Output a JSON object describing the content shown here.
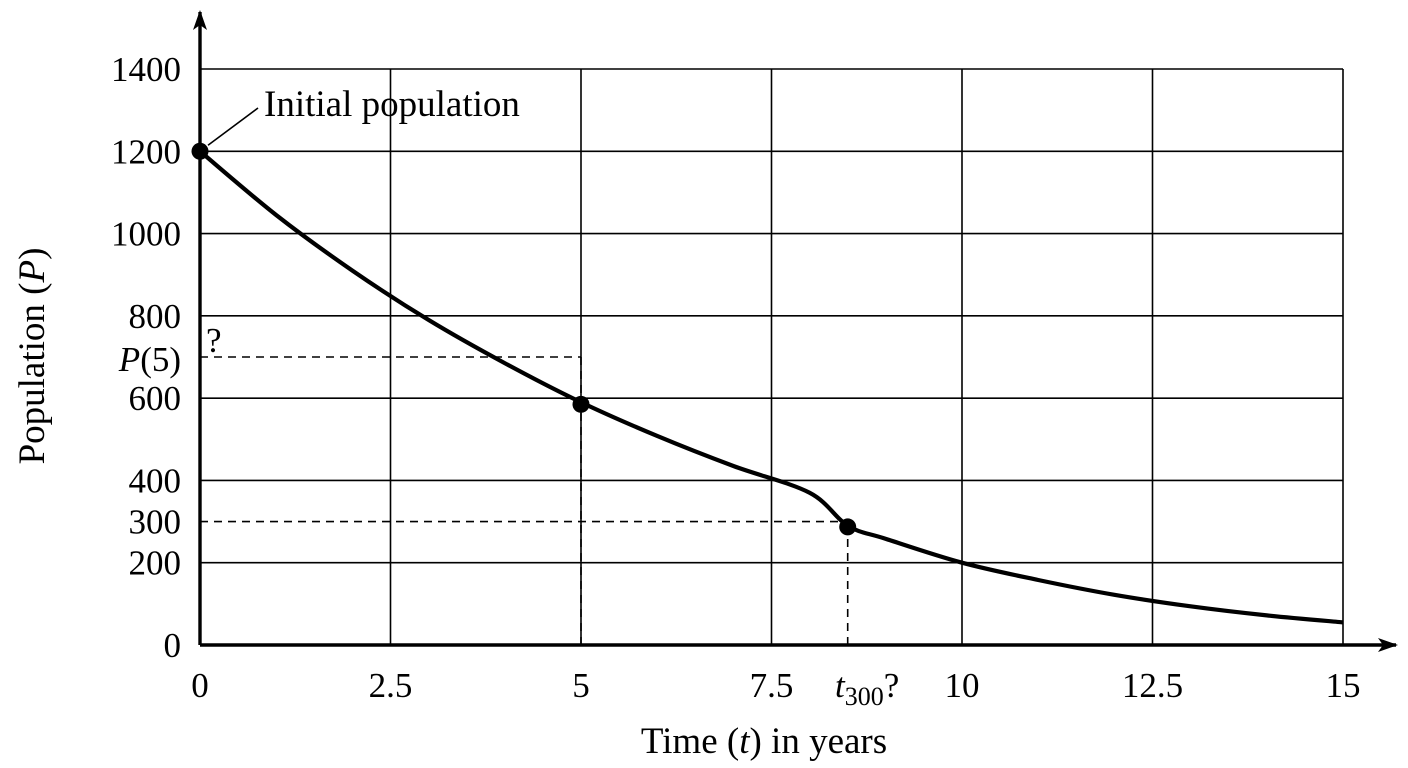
{
  "chart_data": {
    "type": "line",
    "xlabel": {
      "pre": "Time (",
      "var": "t",
      "post": ") in years"
    },
    "ylabel": {
      "pre": "Population (",
      "var": "P",
      "post": ")"
    },
    "xlim": [
      0,
      15
    ],
    "ylim": [
      0,
      1400
    ],
    "grid": true,
    "x_ticks": [
      {
        "value": 0,
        "label": "0"
      },
      {
        "value": 2.5,
        "label": "2.5"
      },
      {
        "value": 5,
        "label": "5"
      },
      {
        "value": 7.5,
        "label": "7.5"
      },
      {
        "value": 10,
        "label": "10"
      },
      {
        "value": 12.5,
        "label": "12.5"
      },
      {
        "value": 15,
        "label": "15"
      }
    ],
    "y_ticks": [
      {
        "value": 0,
        "label": "0"
      },
      {
        "value": 200,
        "label": "200"
      },
      {
        "value": 300,
        "label": "300"
      },
      {
        "value": 400,
        "label": "400"
      },
      {
        "value": 600,
        "label": "600"
      },
      {
        "value": 800,
        "label": "800"
      },
      {
        "value": 1000,
        "label": "1000"
      },
      {
        "value": 1200,
        "label": "1200"
      },
      {
        "value": 1400,
        "label": "1400"
      }
    ],
    "series": [
      {
        "x": [
          0,
          1,
          2,
          3,
          4,
          5,
          6,
          7,
          8,
          8.5,
          9,
          10,
          11,
          12,
          13,
          14,
          15
        ],
        "y": [
          1200,
          1045,
          910,
          790,
          685,
          590,
          508,
          435,
          370,
          290,
          258,
          200,
          158,
          122,
          94,
          72,
          55
        ]
      }
    ],
    "points": [
      {
        "x": 0,
        "y": 1200
      },
      {
        "x": 5,
        "y": 585
      },
      {
        "x": 8.5,
        "y": 287
      }
    ],
    "reference_lines": [
      {
        "kind": "h",
        "y": 700,
        "x_from": 0,
        "x_to": 5
      },
      {
        "kind": "v",
        "x": 5,
        "y_from": 0,
        "y_to": 700
      },
      {
        "kind": "h",
        "y": 300,
        "x_from": 0,
        "x_to": 8.5
      },
      {
        "kind": "v",
        "x": 8.5,
        "y_from": 0,
        "y_to": 300
      }
    ],
    "annotations": {
      "initial": "Initial population",
      "question": "?",
      "p5_var": "P",
      "p5_rest": "(5)",
      "t300_var": "t",
      "t300_sub": "300",
      "t300_q": "?"
    }
  }
}
